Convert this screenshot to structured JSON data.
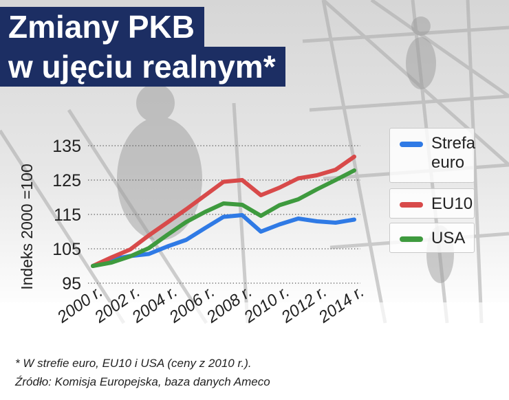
{
  "title": {
    "line1": "Zmiany PKB",
    "line2": "w ujęciu realnym*"
  },
  "footnotes": {
    "note": "* W strefie euro, EU10 i USA (ceny z 2010 r.).",
    "source": "Źródło: Komisja Europejska, baza danych Ameco"
  },
  "chart_data": {
    "type": "line",
    "ylabel": "Indeks 2000 =100",
    "xlabel": "",
    "ylim": [
      95,
      135
    ],
    "yticks": [
      95,
      105,
      115,
      125,
      135
    ],
    "grid": "horizontal-dotted",
    "legend_placement": "right",
    "x": [
      2000,
      2001,
      2002,
      2003,
      2004,
      2005,
      2006,
      2007,
      2008,
      2009,
      2010,
      2011,
      2012,
      2013,
      2014
    ],
    "xticks": [
      {
        "value": 2000,
        "label": "2000 r."
      },
      {
        "value": 2002,
        "label": "2002 r."
      },
      {
        "value": 2004,
        "label": "2004 r."
      },
      {
        "value": 2006,
        "label": "2006 r."
      },
      {
        "value": 2008,
        "label": "2008 r."
      },
      {
        "value": 2010,
        "label": "2010 r."
      },
      {
        "value": 2012,
        "label": "2012 r."
      },
      {
        "value": 2014,
        "label": "2014 r."
      }
    ],
    "series": [
      {
        "name": "Strefa euro",
        "name_lines": [
          "Strefa",
          "euro"
        ],
        "color": "#2f7ae5",
        "values": [
          100,
          101.9,
          102.9,
          103.5,
          105.7,
          107.6,
          111.0,
          114.3,
          114.8,
          110.0,
          112.1,
          113.8,
          113.0,
          112.6,
          113.5
        ]
      },
      {
        "name": "EU10",
        "name_lines": [
          "EU10"
        ],
        "color": "#d84a4a",
        "values": [
          100,
          102.5,
          104.8,
          108.9,
          112.7,
          116.5,
          120.5,
          124.5,
          125.0,
          120.6,
          122.8,
          125.5,
          126.4,
          128.0,
          131.8
        ]
      },
      {
        "name": "USA",
        "name_lines": [
          "USA"
        ],
        "color": "#3e9a3e",
        "values": [
          100,
          101.0,
          102.8,
          105.2,
          109.1,
          112.8,
          115.7,
          118.2,
          117.8,
          114.6,
          117.7,
          119.4,
          122.3,
          125.0,
          127.8
        ]
      }
    ]
  }
}
